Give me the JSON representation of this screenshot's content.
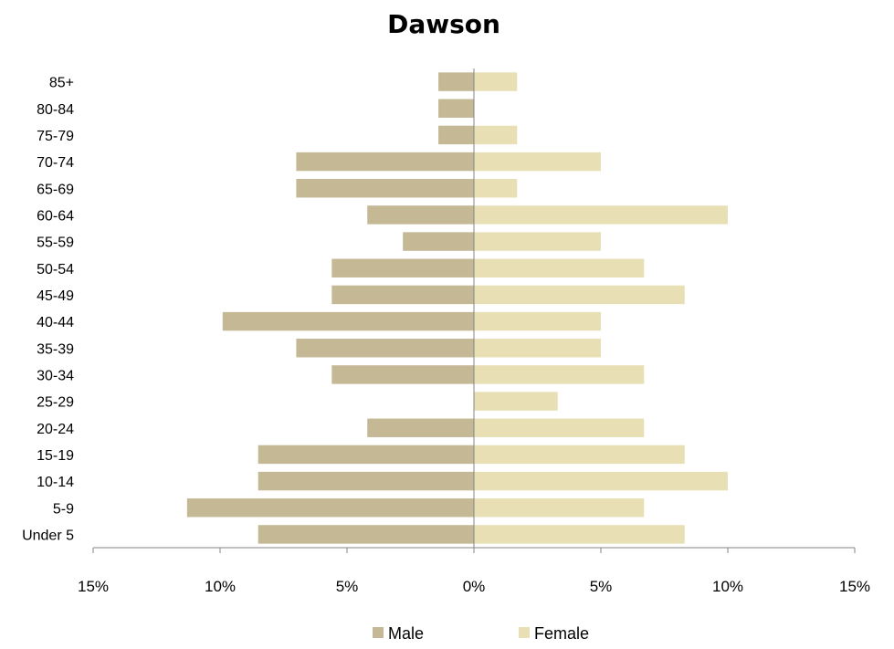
{
  "chart_data": {
    "type": "bar",
    "orientation": "horizontal",
    "title": "Dawson",
    "categories": [
      "85+",
      "80-84",
      "75-79",
      "70-74",
      "65-69",
      "60-64",
      "55-59",
      "50-54",
      "45-49",
      "40-44",
      "35-39",
      "30-34",
      "25-29",
      "20-24",
      "15-19",
      "10-14",
      "5-9",
      "Under 5"
    ],
    "series": [
      {
        "name": "Male",
        "color": "#c4b895",
        "values": [
          -1.4,
          -1.4,
          -1.4,
          -7.0,
          -7.0,
          -4.2,
          -2.8,
          -5.6,
          -5.6,
          -9.9,
          -7.0,
          -5.6,
          0,
          -4.2,
          -8.5,
          -8.5,
          -11.3,
          -8.5
        ]
      },
      {
        "name": "Female",
        "color": "#e8e0b4",
        "values": [
          1.7,
          0,
          1.7,
          5.0,
          1.7,
          10.0,
          5.0,
          6.7,
          8.3,
          5.0,
          5.0,
          6.7,
          3.3,
          6.7,
          8.3,
          10.0,
          6.7,
          8.3
        ]
      }
    ],
    "xlim": [
      -15,
      15
    ],
    "xticks": [
      "15%",
      "10%",
      "5%",
      "0%",
      "5%",
      "10%",
      "15%"
    ],
    "grid": false,
    "legend_position": "bottom"
  }
}
